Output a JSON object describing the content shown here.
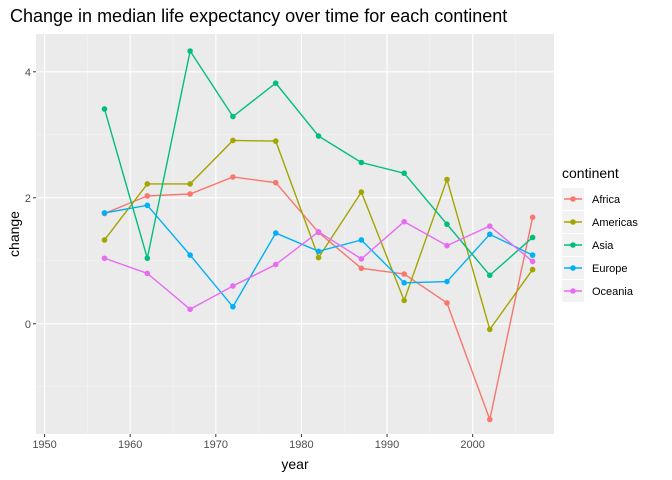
{
  "chart_data": {
    "type": "line",
    "title": "Change in median life expectancy over time for each continent",
    "xlabel": "year",
    "ylabel": "change",
    "xlim": [
      1949,
      2009.5
    ],
    "ylim": [
      -1.75,
      4.6
    ],
    "x_ticks": [
      1950,
      1960,
      1970,
      1980,
      1990,
      2000
    ],
    "x_minor_ticks": [
      1955,
      1965,
      1975,
      1985,
      1995,
      2005
    ],
    "y_ticks": [
      0,
      2,
      4
    ],
    "y_minor_ticks": [
      -1,
      1,
      3
    ],
    "grid": true,
    "legend": {
      "title": "continent",
      "placement": "right"
    },
    "x": [
      1957,
      1962,
      1967,
      1972,
      1977,
      1982,
      1987,
      1992,
      1997,
      2002,
      2007
    ],
    "series": [
      {
        "name": "Africa",
        "color": "#F8766D",
        "values": [
          1.75,
          2.03,
          2.06,
          2.33,
          2.24,
          1.45,
          0.88,
          0.79,
          0.33,
          -1.52,
          1.69
        ]
      },
      {
        "name": "Americas",
        "color": "#A3A500",
        "values": [
          1.33,
          2.22,
          2.22,
          2.91,
          2.9,
          1.05,
          2.09,
          0.37,
          2.29,
          -0.09,
          0.86
        ]
      },
      {
        "name": "Asia",
        "color": "#00BF7D",
        "values": [
          3.41,
          1.04,
          4.33,
          3.29,
          3.82,
          2.98,
          2.56,
          2.39,
          1.58,
          0.77,
          1.37
        ]
      },
      {
        "name": "Europe",
        "color": "#00B0F6",
        "values": [
          1.76,
          1.88,
          1.09,
          0.27,
          1.44,
          1.15,
          1.33,
          0.65,
          0.67,
          1.42,
          1.09
        ]
      },
      {
        "name": "Oceania",
        "color": "#E76BF3",
        "values": [
          1.04,
          0.8,
          0.23,
          0.6,
          0.94,
          1.46,
          1.03,
          1.62,
          1.24,
          1.55,
          0.99
        ]
      }
    ]
  }
}
